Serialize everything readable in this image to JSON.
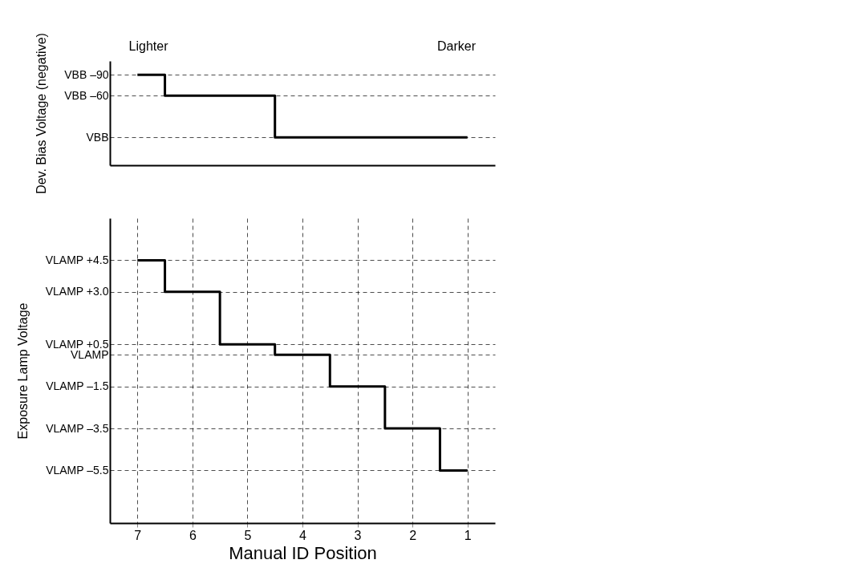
{
  "chart_data": [
    {
      "type": "step",
      "annotations": [
        "Lighter",
        "Darker"
      ],
      "ylabel": "Dev. Bias Voltage (negative)",
      "categories": [
        "7",
        "6",
        "5",
        "4",
        "3",
        "2",
        "1"
      ],
      "values": [
        -90,
        -60,
        -60,
        0,
        0,
        0,
        0
      ],
      "color": "#000000",
      "ylim": [
        40,
        -110
      ],
      "yticks": [
        {
          "value": -90,
          "label": "VBB –90"
        },
        {
          "value": -60,
          "label": "VBB –60"
        },
        {
          "value": 0,
          "label": "VBB"
        }
      ],
      "grid": "y",
      "line_style": "solid",
      "tick_labels": "y"
    },
    {
      "type": "step",
      "ylabel": "Exposure Lamp Voltage",
      "xlabel": "Manual ID Position",
      "categories": [
        "7",
        "6",
        "5",
        "4",
        "3",
        "2",
        "1"
      ],
      "values": [
        4.5,
        3.0,
        0.5,
        0,
        -1.5,
        -3.5,
        -5.5
      ],
      "color": "#000000",
      "ylim": [
        -8,
        6.5
      ],
      "yticks": [
        {
          "value": 4.5,
          "label": "VLAMP +4.5"
        },
        {
          "value": 3.0,
          "label": "VLAMP +3.0"
        },
        {
          "value": 0.5,
          "label": "VLAMP +0.5"
        },
        {
          "value": 0,
          "label": "VLAMP"
        },
        {
          "value": -1.5,
          "label": "VLAMP –1.5"
        },
        {
          "value": -3.5,
          "label": "VLAMP –3.5"
        },
        {
          "value": -5.5,
          "label": "VLAMP –5.5"
        }
      ],
      "grid": true,
      "line_style": "solid"
    }
  ]
}
